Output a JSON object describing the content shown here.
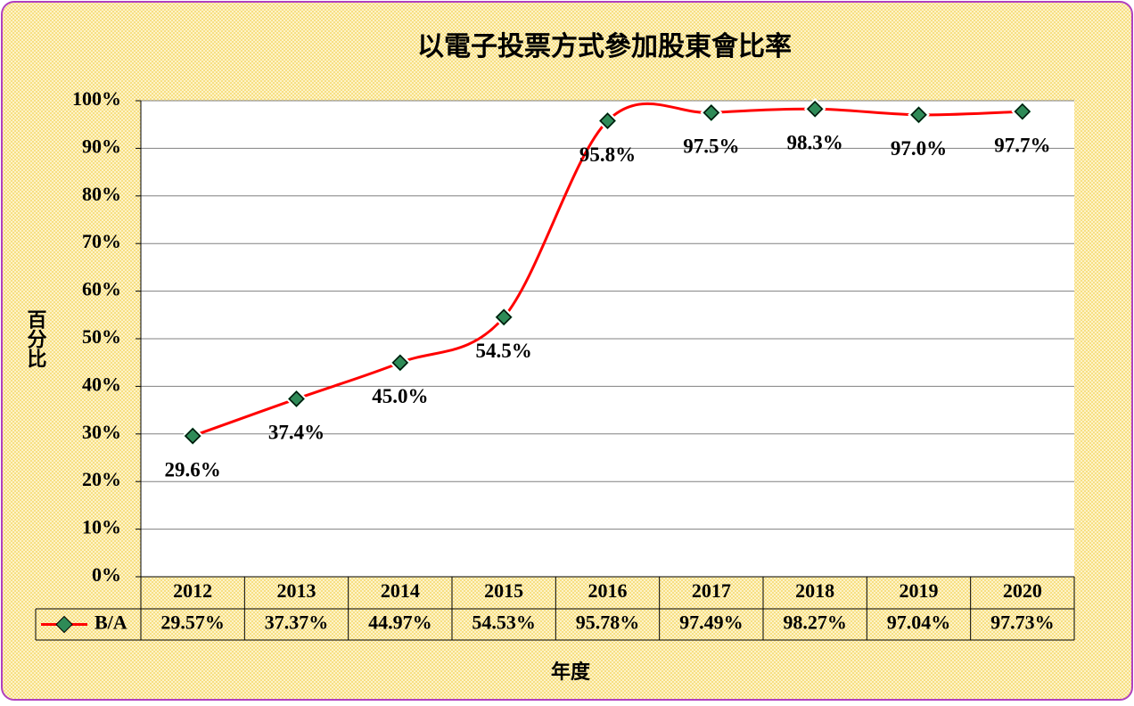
{
  "chart_data": {
    "type": "line",
    "title": "以電子投票方式參加股東會比率",
    "ylabel": "百分比",
    "xlabel": "年度",
    "categories": [
      "2012",
      "2013",
      "2014",
      "2015",
      "2016",
      "2017",
      "2018",
      "2019",
      "2020"
    ],
    "series": [
      {
        "name": "B/A",
        "color": "#ff0000",
        "marker_color": "#2e8b57",
        "values": [
          29.57,
          37.37,
          44.97,
          54.53,
          95.78,
          97.49,
          98.27,
          97.04,
          97.73
        ],
        "value_labels": [
          "29.6%",
          "37.4%",
          "45.0%",
          "54.5%",
          "95.8%",
          "97.5%",
          "98.3%",
          "97.0%",
          "97.7%"
        ],
        "table_labels": [
          "29.57%",
          "37.37%",
          "44.97%",
          "54.53%",
          "95.78%",
          "97.49%",
          "98.27%",
          "97.04%",
          "97.73%"
        ]
      }
    ],
    "ylim": [
      0,
      100
    ],
    "yticks": [
      {
        "value": 0,
        "label": "0%"
      },
      {
        "value": 10,
        "label": "10%"
      },
      {
        "value": 20,
        "label": "20%"
      },
      {
        "value": 30,
        "label": "30%"
      },
      {
        "value": 40,
        "label": "40%"
      },
      {
        "value": 50,
        "label": "50%"
      },
      {
        "value": 60,
        "label": "60%"
      },
      {
        "value": 70,
        "label": "70%"
      },
      {
        "value": 80,
        "label": "80%"
      },
      {
        "value": 90,
        "label": "90%"
      },
      {
        "value": 100,
        "label": "100%"
      }
    ],
    "grid": true
  }
}
